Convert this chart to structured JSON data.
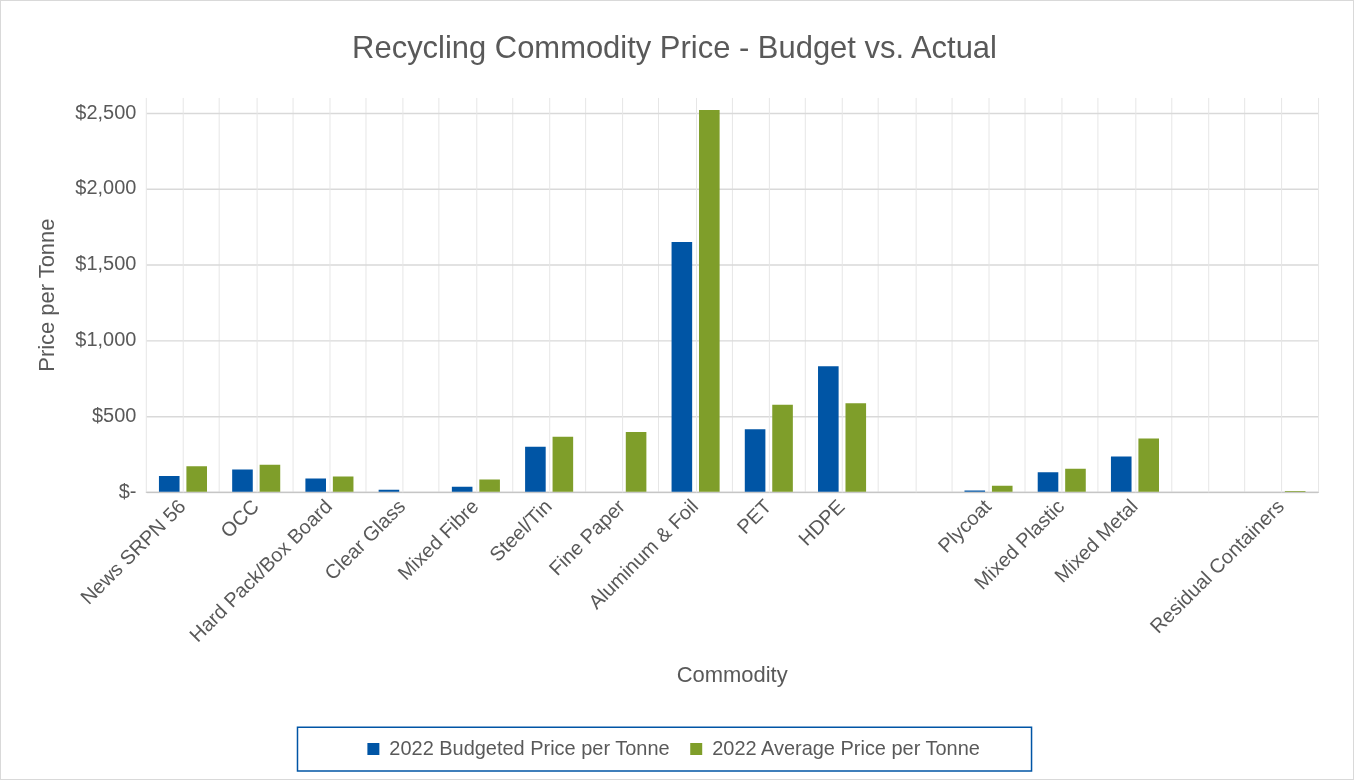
{
  "chart_data": {
    "type": "bar",
    "title": "Recycling Commodity Price - Budget vs. Actual",
    "xlabel": "Commodity",
    "ylabel": "Price per Tonne",
    "categories": [
      "News SRPN 56",
      "OCC",
      "Hard Pack/Box Board",
      "Clear Glass",
      "Mixed Fibre",
      "Steel/Tin",
      "Fine Paper",
      "Aluminum & Foil",
      "PET",
      "HDPE",
      null,
      "Plycoat",
      "Mixed Plastic",
      "Mixed Metal",
      null,
      "Residual Containers"
    ],
    "series": [
      {
        "name": "2022 Budgeted Price per Tonne",
        "color": "#0055a5",
        "values": [
          108,
          150,
          91,
          17,
          37,
          301,
          null,
          1650,
          416,
          832,
          null,
          12,
          133,
          237,
          null,
          null
        ]
      },
      {
        "name": "2022 Average Price per Tonne",
        "color": "#7f9e2a",
        "values": [
          173,
          182,
          105,
          null,
          85,
          366,
          398,
          2520,
          578,
          587,
          null,
          43,
          156,
          355,
          null,
          9
        ]
      }
    ],
    "ylim": [
      0,
      2600
    ],
    "yticks": [
      {
        "value": 0,
        "label": "$-"
      },
      {
        "value": 500,
        "label": "$500"
      },
      {
        "value": 1000,
        "label": "$1,000"
      },
      {
        "value": 1500,
        "label": "$1,500"
      },
      {
        "value": 2000,
        "label": "$2,000"
      },
      {
        "value": 2500,
        "label": "$2,500"
      }
    ],
    "grid": true,
    "legend": "bottom"
  }
}
